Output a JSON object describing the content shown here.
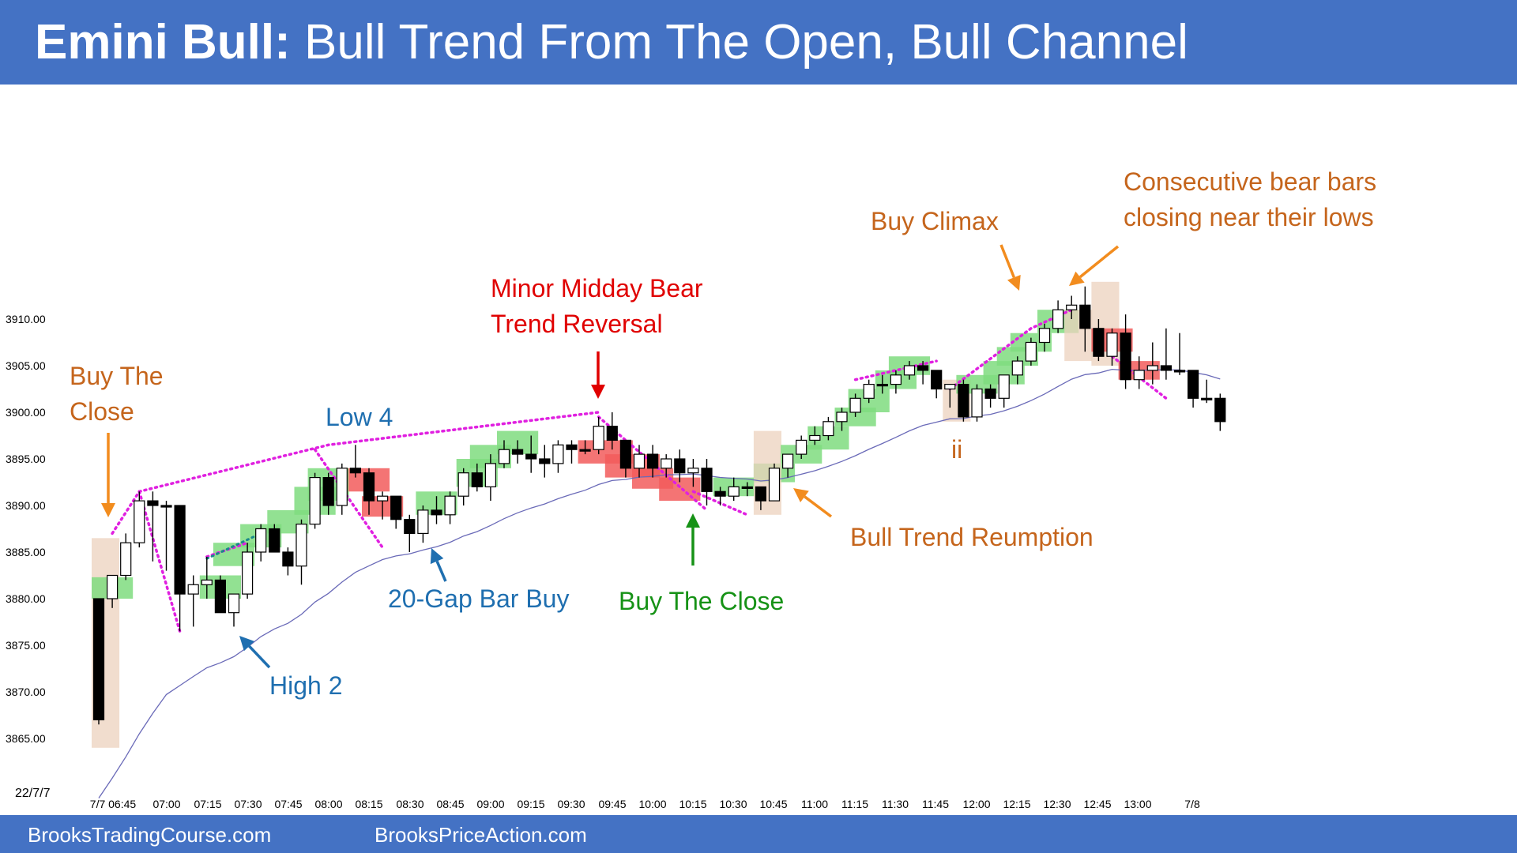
{
  "header": {
    "title_bold": "Emini Bull:",
    "title_rest": " Bull Trend From The Open, Bull Channel"
  },
  "footer": {
    "left": "BrooksTradingCourse.com",
    "right": "BrooksPriceAction.com"
  },
  "annotations": {
    "buy_the_close_1": [
      "Buy The",
      "Close"
    ],
    "low_4": "Low 4",
    "minor_midday": [
      "Minor Midday Bear",
      "Trend Reversal"
    ],
    "buy_climax": "Buy Climax",
    "consecutive_bear": [
      "Consecutive bear bars",
      "closing near their lows"
    ],
    "ii": "ii",
    "bull_trend_reumption": "Bull Trend Reumption",
    "buy_the_close_2": "Buy The Close",
    "gap_bar_buy": "20-Gap Bar Buy",
    "high_2": "High 2"
  },
  "colors": {
    "header": "#4472c4",
    "bull_highlight": "#7fdc7f",
    "bear_highlight": "#f25c5c",
    "tan_highlight": "#ecd1bd",
    "trendline": "#e020e0",
    "ema": "#6a6ab8",
    "orange_text": "#c5651c",
    "blue_text": "#1f6fb0"
  },
  "chart_data": {
    "type": "candlestick",
    "date_label": "22/7/7",
    "ylim": [
      3862,
      3916
    ],
    "y_ticks": [
      "3865.00",
      "3870.00",
      "3875.00",
      "3880.00",
      "3885.00",
      "3890.00",
      "3895.00",
      "3900.00",
      "3905.00",
      "3910.00"
    ],
    "x_ticks": [
      "7/7 06:45",
      "07:00",
      "07:15",
      "07:30",
      "07:45",
      "08:00",
      "08:15",
      "08:30",
      "08:45",
      "09:00",
      "09:15",
      "09:30",
      "09:45",
      "10:00",
      "10:15",
      "10:30",
      "10:45",
      "11:00",
      "11:15",
      "11:30",
      "11:45",
      "12:00",
      "12:15",
      "12:30",
      "12:45",
      "13:00",
      "7/8"
    ],
    "bars": [
      [
        3880.0,
        3880.0,
        3866.5,
        3867.0
      ],
      [
        3880.0,
        3882.5,
        3879.0,
        3882.5
      ],
      [
        3882.5,
        3887.0,
        3882.0,
        3886.0
      ],
      [
        3886.0,
        3891.5,
        3885.5,
        3890.5
      ],
      [
        3890.5,
        3891.5,
        3884.0,
        3890.0
      ],
      [
        3890.0,
        3890.5,
        3883.0,
        3890.0
      ],
      [
        3890.0,
        3890.0,
        3876.5,
        3880.5
      ],
      [
        3880.5,
        3882.5,
        3877.0,
        3881.5
      ],
      [
        3881.5,
        3884.5,
        3880.0,
        3882.0
      ],
      [
        3882.0,
        3882.5,
        3878.5,
        3878.5
      ],
      [
        3878.5,
        3880.5,
        3877.0,
        3880.5
      ],
      [
        3880.5,
        3886.0,
        3880.0,
        3885.0
      ],
      [
        3885.0,
        3888.0,
        3884.0,
        3887.5
      ],
      [
        3887.5,
        3888.0,
        3885.0,
        3885.0
      ],
      [
        3885.0,
        3885.5,
        3882.5,
        3883.5
      ],
      [
        3883.5,
        3888.5,
        3881.5,
        3888.0
      ],
      [
        3888.0,
        3893.5,
        3887.5,
        3893.0
      ],
      [
        3893.0,
        3893.5,
        3889.0,
        3890.0
      ],
      [
        3890.0,
        3894.5,
        3889.0,
        3894.0
      ],
      [
        3894.0,
        3896.5,
        3893.0,
        3893.5
      ],
      [
        3893.5,
        3894.0,
        3889.0,
        3890.5
      ],
      [
        3890.5,
        3891.5,
        3888.5,
        3891.0
      ],
      [
        3891.0,
        3891.0,
        3887.5,
        3888.5
      ],
      [
        3888.5,
        3889.0,
        3885.0,
        3887.0
      ],
      [
        3887.0,
        3890.0,
        3886.0,
        3889.5
      ],
      [
        3889.5,
        3891.0,
        3888.0,
        3889.0
      ],
      [
        3889.0,
        3891.5,
        3888.0,
        3891.0
      ],
      [
        3891.0,
        3894.0,
        3890.0,
        3893.5
      ],
      [
        3893.5,
        3894.5,
        3891.5,
        3892.0
      ],
      [
        3892.0,
        3895.5,
        3890.5,
        3894.5
      ],
      [
        3894.5,
        3897.0,
        3894.0,
        3896.0
      ],
      [
        3896.0,
        3897.0,
        3894.5,
        3895.5
      ],
      [
        3895.5,
        3897.5,
        3893.5,
        3895.0
      ],
      [
        3895.0,
        3896.5,
        3893.0,
        3894.5
      ],
      [
        3894.5,
        3897.0,
        3893.5,
        3896.5
      ],
      [
        3896.5,
        3897.0,
        3894.5,
        3896.0
      ],
      [
        3896.0,
        3897.0,
        3895.5,
        3896.0
      ],
      [
        3896.0,
        3899.5,
        3895.5,
        3898.5
      ],
      [
        3898.5,
        3900.0,
        3896.0,
        3897.0
      ],
      [
        3897.0,
        3897.0,
        3893.0,
        3894.0
      ],
      [
        3894.0,
        3896.5,
        3893.0,
        3895.5
      ],
      [
        3895.5,
        3896.5,
        3893.0,
        3894.0
      ],
      [
        3894.0,
        3895.5,
        3893.0,
        3895.0
      ],
      [
        3895.0,
        3896.0,
        3892.5,
        3893.5
      ],
      [
        3893.5,
        3895.0,
        3892.0,
        3894.0
      ],
      [
        3894.0,
        3895.0,
        3890.0,
        3891.5
      ],
      [
        3891.5,
        3892.0,
        3890.0,
        3891.0
      ],
      [
        3891.0,
        3893.0,
        3890.5,
        3892.0
      ],
      [
        3892.0,
        3892.5,
        3891.0,
        3892.0
      ],
      [
        3892.0,
        3892.0,
        3889.5,
        3890.5
      ],
      [
        3890.5,
        3894.5,
        3890.5,
        3894.0
      ],
      [
        3894.0,
        3895.5,
        3893.0,
        3895.5
      ],
      [
        3895.5,
        3897.5,
        3895.0,
        3897.0
      ],
      [
        3897.0,
        3898.5,
        3896.5,
        3897.5
      ],
      [
        3897.5,
        3899.5,
        3897.0,
        3899.0
      ],
      [
        3899.0,
        3900.5,
        3898.0,
        3900.0
      ],
      [
        3900.0,
        3902.0,
        3899.5,
        3901.5
      ],
      [
        3901.5,
        3903.5,
        3901.0,
        3903.0
      ],
      [
        3903.0,
        3904.0,
        3902.0,
        3903.0
      ],
      [
        3903.0,
        3904.5,
        3902.0,
        3904.0
      ],
      [
        3904.0,
        3905.5,
        3903.5,
        3905.0
      ],
      [
        3905.0,
        3905.5,
        3903.0,
        3904.5
      ],
      [
        3904.5,
        3904.5,
        3901.5,
        3902.5
      ],
      [
        3902.5,
        3903.0,
        3900.5,
        3903.0
      ],
      [
        3903.0,
        3903.5,
        3899.0,
        3899.5
      ],
      [
        3899.5,
        3903.0,
        3899.0,
        3902.5
      ],
      [
        3902.5,
        3903.0,
        3900.5,
        3901.5
      ],
      [
        3901.5,
        3904.0,
        3900.5,
        3904.0
      ],
      [
        3904.0,
        3906.0,
        3903.0,
        3905.5
      ],
      [
        3905.5,
        3908.0,
        3905.0,
        3907.5
      ],
      [
        3907.5,
        3909.5,
        3906.5,
        3909.0
      ],
      [
        3909.0,
        3912.0,
        3908.5,
        3911.0
      ],
      [
        3911.0,
        3912.5,
        3910.0,
        3911.5
      ],
      [
        3911.5,
        3913.5,
        3906.5,
        3909.0
      ],
      [
        3909.0,
        3910.0,
        3905.5,
        3906.0
      ],
      [
        3906.0,
        3909.0,
        3905.0,
        3908.5
      ],
      [
        3908.5,
        3910.5,
        3902.5,
        3903.5
      ],
      [
        3903.5,
        3906.0,
        3902.5,
        3904.5
      ],
      [
        3904.5,
        3907.5,
        3903.0,
        3905.0
      ],
      [
        3905.0,
        3909.0,
        3903.5,
        3904.5
      ],
      [
        3904.5,
        3908.5,
        3904.0,
        3904.5
      ],
      [
        3904.5,
        3904.5,
        3900.5,
        3901.5
      ],
      [
        3901.5,
        3903.5,
        3901.0,
        3901.5
      ],
      [
        3901.5,
        3902.0,
        3898.0,
        3899.0
      ]
    ]
  }
}
